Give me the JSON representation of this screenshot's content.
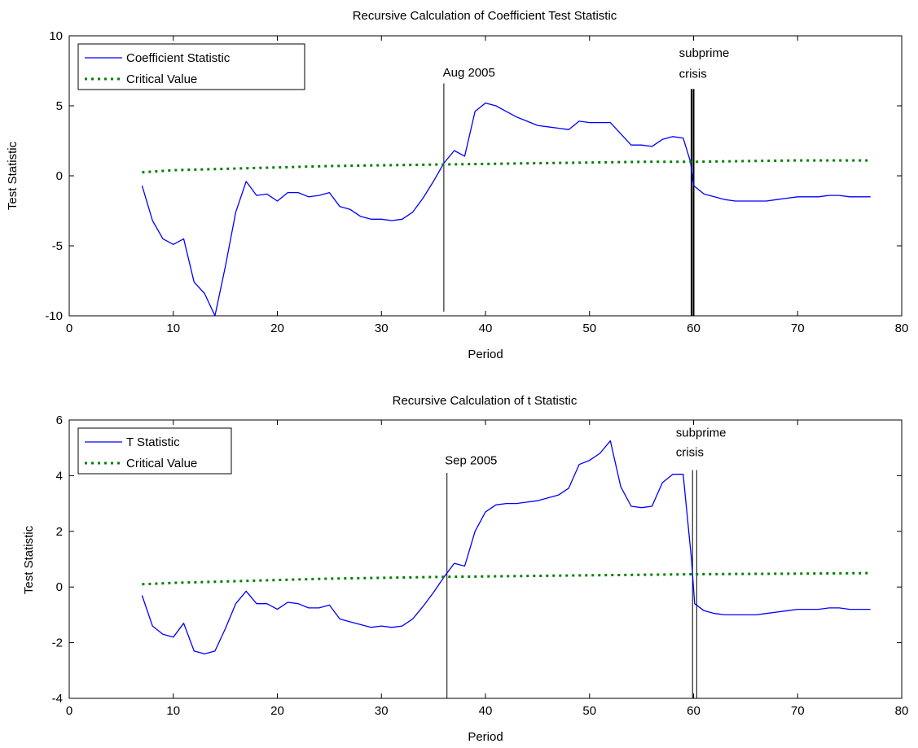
{
  "chart_data": [
    {
      "type": "line",
      "title": "Recursive Calculation of Coefficient Test Statistic",
      "xlabel": "Period",
      "ylabel": "Test Statistic",
      "xlim": [
        0,
        80
      ],
      "ylim": [
        -10,
        10
      ],
      "xticks": [
        "0",
        "10",
        "20",
        "30",
        "40",
        "50",
        "60",
        "70",
        "80"
      ],
      "yticks": [
        "-10",
        "-5",
        "0",
        "5",
        "10"
      ],
      "legend_position": "top-left",
      "grid": false,
      "series": [
        {
          "name": "Coefficient Statistic",
          "color": "#0000ff",
          "style": "solid",
          "x": [
            7,
            8,
            9,
            10,
            11,
            12,
            13,
            14,
            15,
            16,
            17,
            18,
            19,
            20,
            21,
            22,
            23,
            24,
            25,
            26,
            27,
            28,
            29,
            30,
            31,
            32,
            33,
            34,
            35,
            36,
            37,
            38,
            39,
            40,
            41,
            42,
            43,
            44,
            45,
            46,
            47,
            48,
            49,
            50,
            51,
            52,
            53,
            54,
            55,
            56,
            57,
            58,
            59,
            59.7,
            60,
            61,
            62,
            63,
            64,
            65,
            66,
            67,
            68,
            69,
            70,
            71,
            72,
            73,
            74,
            75,
            76,
            77
          ],
          "y": [
            -0.7,
            -3.2,
            -4.5,
            -4.9,
            -4.5,
            -7.6,
            -8.4,
            -10,
            -6.5,
            -2.6,
            -0.4,
            -1.4,
            -1.3,
            -1.8,
            -1.2,
            -1.2,
            -1.5,
            -1.4,
            -1.2,
            -2.2,
            -2.4,
            -2.9,
            -3.1,
            -3.1,
            -3.2,
            -3.1,
            -2.6,
            -1.6,
            -0.4,
            0.9,
            1.8,
            1.4,
            4.6,
            5.2,
            5.0,
            4.6,
            4.2,
            3.9,
            3.6,
            3.5,
            3.4,
            3.3,
            3.9,
            3.8,
            3.8,
            3.8,
            3.0,
            2.2,
            2.2,
            2.1,
            2.6,
            2.8,
            2.7,
            1.0,
            -0.7,
            -1.3,
            -1.5,
            -1.7,
            -1.8,
            -1.8,
            -1.8,
            -1.8,
            -1.7,
            -1.6,
            -1.5,
            -1.5,
            -1.5,
            -1.4,
            -1.4,
            -1.5,
            -1.5,
            -1.5
          ]
        },
        {
          "name": "Critical Value",
          "color": "#008000",
          "style": "dotted",
          "x": [
            7,
            10,
            15,
            20,
            25,
            30,
            35,
            40,
            45,
            50,
            55,
            60,
            65,
            70,
            77
          ],
          "y": [
            0.25,
            0.4,
            0.5,
            0.6,
            0.7,
            0.75,
            0.8,
            0.85,
            0.9,
            0.95,
            1.0,
            1.0,
            1.05,
            1.1,
            1.1
          ]
        }
      ],
      "vlines": [
        {
          "x": 36,
          "y_from": -9.7,
          "y_to": 6.6,
          "width": 1
        },
        {
          "x": 59.8,
          "y_from": -10,
          "y_to": 6.2,
          "width": 2
        },
        {
          "x": 60,
          "y_from": -10,
          "y_to": 6.2,
          "width": 2
        }
      ],
      "annotations": [
        {
          "text": "Aug 2005",
          "x": 35.9,
          "y": 7.1
        },
        {
          "text": "subprime",
          "x": 58.6,
          "y": 8.5
        },
        {
          "text": "crisis",
          "x": 58.6,
          "y": 7.0
        }
      ]
    },
    {
      "type": "line",
      "title": "Recursive Calculation of t Statistic",
      "xlabel": "Period",
      "ylabel": "Test Statistic",
      "xlim": [
        0,
        80
      ],
      "ylim": [
        -4,
        6
      ],
      "xticks": [
        "0",
        "10",
        "20",
        "30",
        "40",
        "50",
        "60",
        "70",
        "80"
      ],
      "yticks": [
        "-4",
        "-2",
        "0",
        "2",
        "4",
        "6"
      ],
      "legend_position": "top-left",
      "grid": false,
      "series": [
        {
          "name": "T Statistic",
          "color": "#0000ff",
          "style": "solid",
          "x": [
            7,
            8,
            9,
            10,
            11,
            12,
            13,
            14,
            15,
            16,
            17,
            18,
            19,
            20,
            21,
            22,
            23,
            24,
            25,
            26,
            27,
            28,
            29,
            30,
            31,
            32,
            33,
            34,
            35,
            36,
            37,
            38,
            39,
            40,
            41,
            42,
            43,
            44,
            45,
            46,
            47,
            48,
            49,
            50,
            51,
            52,
            53,
            54,
            55,
            56,
            57,
            58,
            59,
            59.8,
            60.1,
            61,
            62,
            63,
            64,
            65,
            66,
            67,
            68,
            69,
            70,
            71,
            72,
            73,
            74,
            75,
            76,
            77
          ],
          "y": [
            -0.3,
            -1.4,
            -1.7,
            -1.8,
            -1.3,
            -2.3,
            -2.4,
            -2.3,
            -1.5,
            -0.6,
            -0.15,
            -0.6,
            -0.6,
            -0.8,
            -0.55,
            -0.6,
            -0.75,
            -0.75,
            -0.65,
            -1.15,
            -1.25,
            -1.35,
            -1.45,
            -1.4,
            -1.45,
            -1.4,
            -1.15,
            -0.7,
            -0.2,
            0.35,
            0.85,
            0.75,
            2.0,
            2.7,
            2.95,
            3.0,
            3.0,
            3.05,
            3.1,
            3.2,
            3.3,
            3.55,
            4.4,
            4.55,
            4.8,
            5.25,
            3.6,
            2.9,
            2.85,
            2.9,
            3.75,
            4.05,
            4.05,
            1.0,
            -0.6,
            -0.85,
            -0.95,
            -1.0,
            -1.0,
            -1.0,
            -1.0,
            -0.95,
            -0.9,
            -0.85,
            -0.8,
            -0.8,
            -0.8,
            -0.75,
            -0.75,
            -0.8,
            -0.8,
            -0.8
          ]
        },
        {
          "name": "Critical Value",
          "color": "#008000",
          "style": "dotted",
          "x": [
            7,
            10,
            15,
            20,
            25,
            30,
            35,
            40,
            45,
            50,
            55,
            60,
            65,
            70,
            77
          ],
          "y": [
            0.1,
            0.15,
            0.2,
            0.25,
            0.3,
            0.33,
            0.36,
            0.38,
            0.4,
            0.42,
            0.44,
            0.46,
            0.47,
            0.48,
            0.5
          ]
        }
      ],
      "vlines": [
        {
          "x": 36.3,
          "y_from": -4,
          "y_to": 4.1,
          "width": 1
        },
        {
          "x": 59.9,
          "y_from": -4,
          "y_to": 4.2,
          "width": 1
        },
        {
          "x": 60.3,
          "y_from": -4,
          "y_to": 4.2,
          "width": 1
        }
      ],
      "annotations": [
        {
          "text": "Sep 2005",
          "x": 36.1,
          "y": 4.4
        },
        {
          "text": "subprime",
          "x": 58.3,
          "y": 5.4
        },
        {
          "text": "crisis",
          "x": 58.3,
          "y": 4.7
        }
      ]
    }
  ]
}
